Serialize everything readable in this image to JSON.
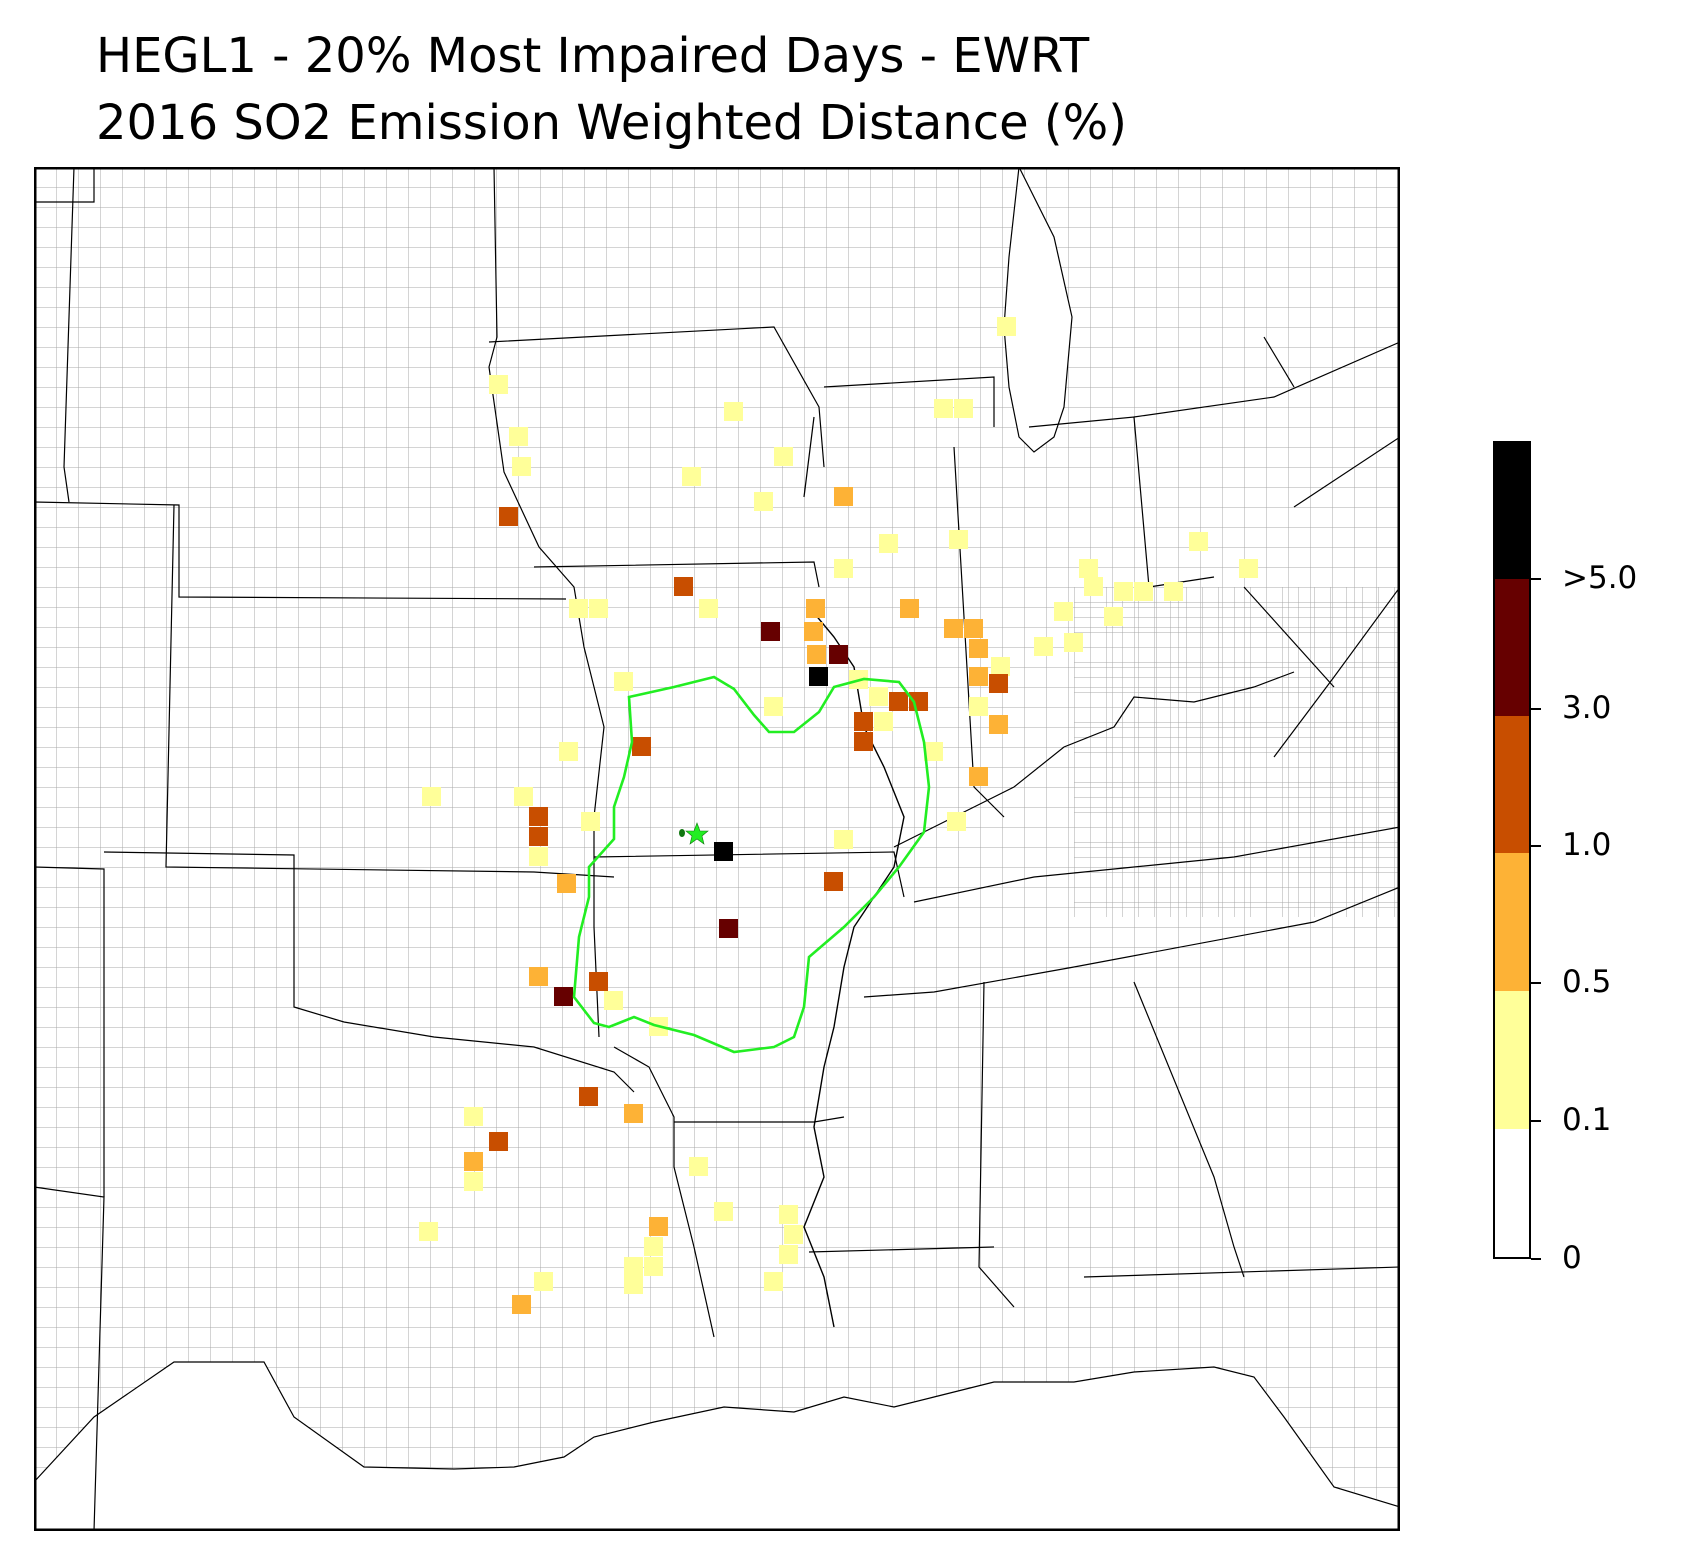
{
  "title_line1": "HEGL1 - 20% Most Impaired Days - EWRT",
  "title_line2": "2016 SO2 Emission Weighted Distance (%)",
  "legend": {
    "bins": [
      {
        "from": "0",
        "to": "0.1",
        "color": "#ffffff"
      },
      {
        "from": "0.1",
        "to": "0.5",
        "color": "#ffff99"
      },
      {
        "from": "0.5",
        "to": "1.0",
        "color": "#fdb236"
      },
      {
        "from": "1.0",
        "to": "3.0",
        "color": "#c84e00"
      },
      {
        "from": "3.0",
        "to": ">5.0",
        "color": "#660000"
      },
      {
        "from": ">5.0",
        "to": "",
        "color": "#000000"
      }
    ],
    "tick_labels": [
      "0",
      "0.1",
      "0.5",
      "1.0",
      "3.0",
      ">5.0"
    ]
  },
  "map": {
    "region": "central-united-states",
    "contour_color": "#22ee22",
    "receptor_marker": "star",
    "border_color": "#000000",
    "county_color": "#9a9a9a"
  }
}
